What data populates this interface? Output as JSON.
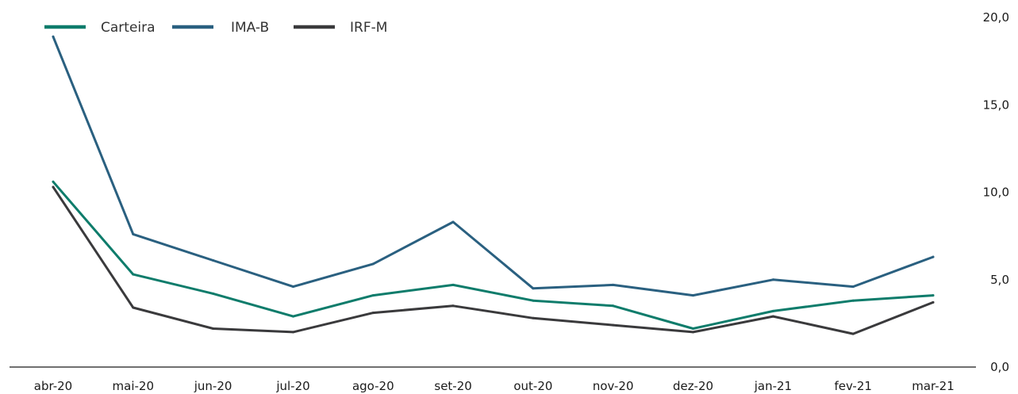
{
  "chart_data": {
    "type": "line",
    "categories": [
      "abr-20",
      "mai-20",
      "jun-20",
      "jul-20",
      "ago-20",
      "set-20",
      "out-20",
      "nov-20",
      "dez-20",
      "jan-21",
      "fev-21",
      "mar-21"
    ],
    "series": [
      {
        "name": "Carteira",
        "color": "#0e7c6b",
        "values": [
          10.6,
          5.3,
          4.2,
          2.9,
          4.1,
          4.7,
          3.8,
          3.5,
          2.2,
          3.2,
          3.8,
          4.1
        ]
      },
      {
        "name": "IMA-B",
        "color": "#2a6080",
        "values": [
          18.9,
          7.6,
          6.1,
          4.6,
          5.9,
          8.3,
          4.5,
          4.7,
          4.1,
          5.0,
          4.6,
          6.3
        ]
      },
      {
        "name": "IRF-M",
        "color": "#3a3a3c",
        "values": [
          10.3,
          3.4,
          2.2,
          2.0,
          3.1,
          3.5,
          2.8,
          2.4,
          2.0,
          2.9,
          1.9,
          3.7
        ]
      }
    ],
    "y_ticks": [
      "0,0",
      "5,0",
      "10,0",
      "15,0",
      "20,0"
    ],
    "ylim": [
      0,
      20
    ],
    "y_axis_side": "right",
    "legend_position": "top-left",
    "grid": false
  }
}
